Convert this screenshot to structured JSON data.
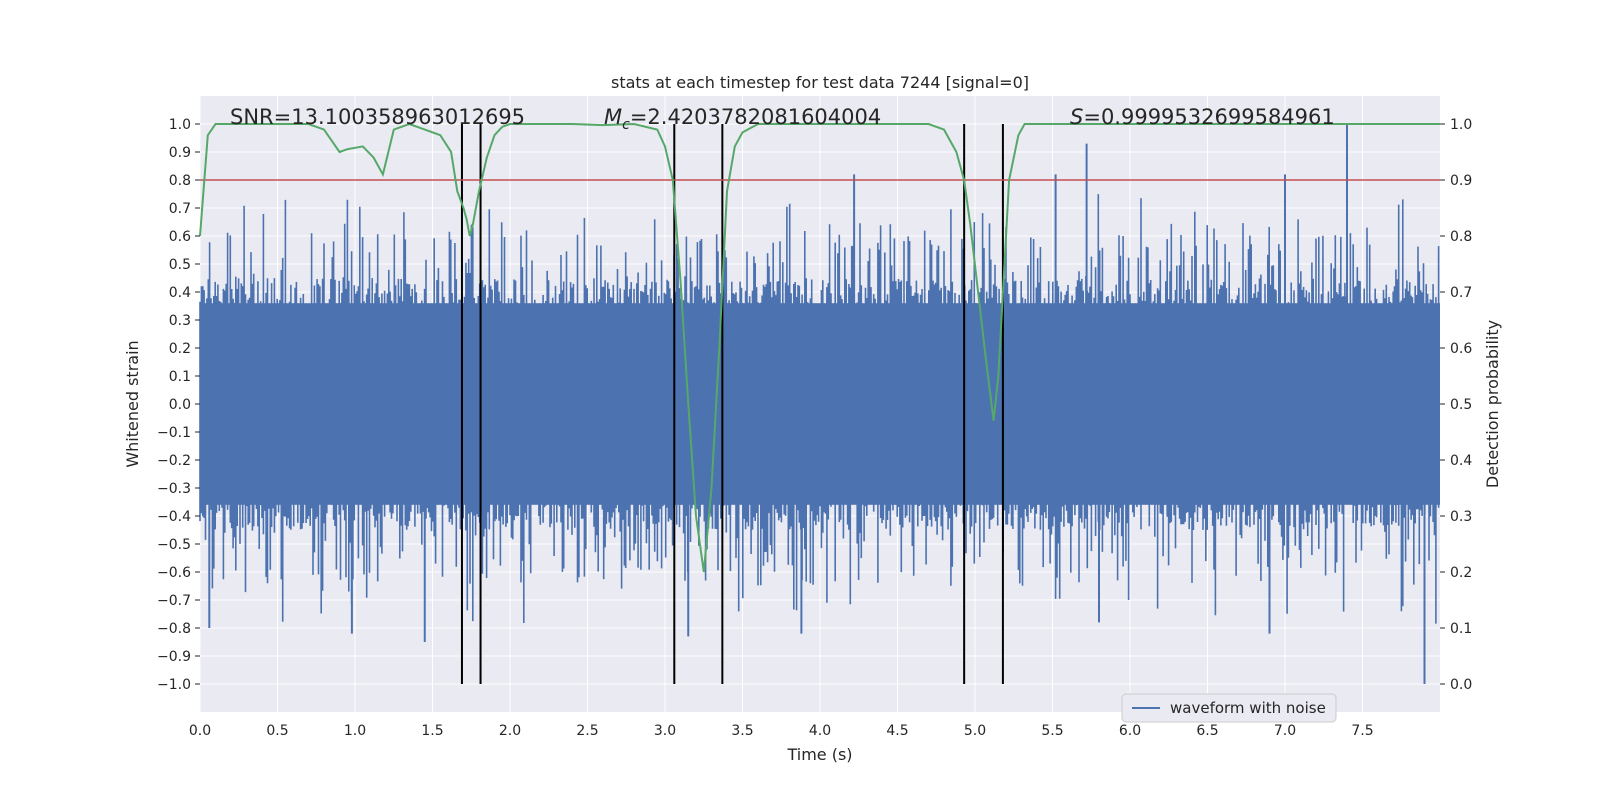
{
  "chart_data": {
    "type": "line",
    "title": "stats at each timestep for test data 7244 [signal=0]",
    "xlabel": "Time (s)",
    "ylabel": "Whitened strain",
    "ylabel_right": "Detection probability",
    "xlim": [
      0.0,
      8.0
    ],
    "ylim": [
      -1.1,
      1.1
    ],
    "ylim_right": [
      -0.05,
      1.05
    ],
    "x_ticks": [
      "0.0",
      "0.5",
      "1.0",
      "1.5",
      "2.0",
      "2.5",
      "3.0",
      "3.5",
      "4.0",
      "4.5",
      "5.0",
      "5.5",
      "6.0",
      "6.5",
      "7.0",
      "7.5"
    ],
    "y_ticks": [
      "1.0",
      "0.9",
      "0.8",
      "0.7",
      "0.6",
      "0.5",
      "0.4",
      "0.3",
      "0.2",
      "0.1",
      "0.0",
      "−0.1",
      "−0.2",
      "−0.3",
      "−0.4",
      "−0.5",
      "−0.6",
      "−0.7",
      "−0.8",
      "−0.9",
      "−1.0"
    ],
    "y_right_ticks": [
      "1.0",
      "0.9",
      "0.8",
      "0.7",
      "0.6",
      "0.5",
      "0.4",
      "0.3",
      "0.2",
      "0.1",
      "0.0"
    ],
    "grid": true,
    "annotations": {
      "snr": "SNR=13.100358963012695",
      "mc_symbol": "M",
      "mc_sub": "c",
      "mc_value": "=2.4203782081604004",
      "s_symbol": "S",
      "s_value": "=0.9999532699584961"
    },
    "series": [
      {
        "name": "waveform with noise",
        "axis": "left",
        "color": "#4c72b0",
        "style": "noise band, typical amplitude about ±0.4, spikes up to 1.0 near t≈7.4 and down to -1.0 near t≈7.9"
      },
      {
        "name": "detection probability",
        "axis": "right",
        "color": "#55a868",
        "x": [
          0.0,
          0.05,
          0.1,
          0.2,
          0.3,
          0.5,
          0.7,
          0.8,
          0.85,
          0.9,
          0.95,
          1.05,
          1.12,
          1.18,
          1.25,
          1.35,
          1.45,
          1.55,
          1.62,
          1.66,
          1.7,
          1.72,
          1.74,
          1.76,
          1.8,
          1.85,
          1.9,
          1.95,
          2.0,
          2.2,
          2.4,
          2.6,
          2.8,
          2.95,
          3.0,
          3.05,
          3.1,
          3.15,
          3.2,
          3.25,
          3.3,
          3.35,
          3.4,
          3.45,
          3.5,
          3.6,
          3.8,
          4.0,
          4.2,
          4.4,
          4.6,
          4.7,
          4.8,
          4.88,
          4.93,
          4.97,
          5.02,
          5.07,
          5.12,
          5.15,
          5.19,
          5.22,
          5.28,
          5.32,
          5.4,
          5.5,
          5.7,
          6.0,
          6.5,
          7.0,
          7.5,
          8.0
        ],
        "values": [
          0.8,
          0.98,
          1.0,
          1.0,
          1.0,
          1.0,
          1.0,
          0.99,
          0.97,
          0.95,
          0.955,
          0.96,
          0.94,
          0.91,
          0.99,
          1.0,
          0.99,
          0.98,
          0.95,
          0.88,
          0.85,
          0.83,
          0.8,
          0.82,
          0.88,
          0.94,
          0.98,
          0.995,
          1.0,
          1.0,
          1.0,
          0.998,
          1.0,
          0.99,
          0.96,
          0.9,
          0.72,
          0.5,
          0.3,
          0.2,
          0.35,
          0.6,
          0.88,
          0.96,
          0.985,
          1.0,
          1.0,
          1.0,
          1.0,
          1.0,
          1.0,
          1.0,
          0.99,
          0.95,
          0.9,
          0.82,
          0.7,
          0.58,
          0.47,
          0.55,
          0.75,
          0.9,
          0.98,
          1.0,
          1.0,
          1.0,
          1.0,
          1.0,
          1.0,
          1.0,
          1.0,
          1.0
        ]
      }
    ],
    "threshold": {
      "value": 0.9,
      "axis": "right",
      "color": "#c44e52"
    },
    "vlines": [
      1.69,
      1.81,
      3.06,
      3.37,
      4.93,
      5.18
    ],
    "legend": {
      "position": "lower-right",
      "entries": [
        "waveform with noise"
      ]
    },
    "colors": {
      "background": "#eaeaf2",
      "grid": "#ffffff",
      "vline": "#000000",
      "text": "#262626"
    }
  }
}
